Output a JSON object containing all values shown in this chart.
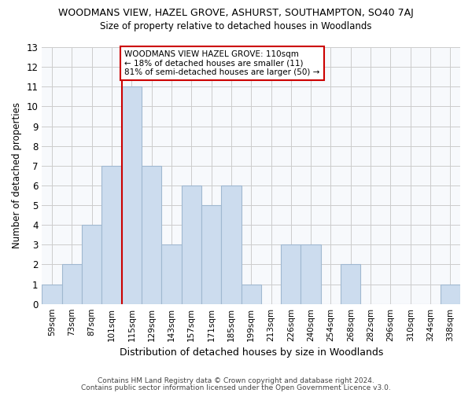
{
  "title": "WOODMANS VIEW, HAZEL GROVE, ASHURST, SOUTHAMPTON, SO40 7AJ",
  "subtitle": "Size of property relative to detached houses in Woodlands",
  "xlabel": "Distribution of detached houses by size in Woodlands",
  "ylabel": "Number of detached properties",
  "bar_color": "#ccdcee",
  "bar_edge_color": "#a0b8d0",
  "grid_color": "#cccccc",
  "annotation_line_color": "#cc0000",
  "categories": [
    "59sqm",
    "73sqm",
    "87sqm",
    "101sqm",
    "115sqm",
    "129sqm",
    "143sqm",
    "157sqm",
    "171sqm",
    "185sqm",
    "199sqm",
    "213sqm",
    "226sqm",
    "240sqm",
    "254sqm",
    "268sqm",
    "282sqm",
    "296sqm",
    "310sqm",
    "324sqm",
    "338sqm"
  ],
  "values": [
    1,
    2,
    4,
    7,
    11,
    7,
    3,
    6,
    5,
    6,
    1,
    0,
    3,
    3,
    0,
    2,
    0,
    0,
    0,
    0,
    1
  ],
  "ylim": [
    0,
    13
  ],
  "yticks": [
    0,
    1,
    2,
    3,
    4,
    5,
    6,
    7,
    8,
    9,
    10,
    11,
    12,
    13
  ],
  "annotation_box_text": "WOODMANS VIEW HAZEL GROVE: 110sqm\n← 18% of detached houses are smaller (11)\n81% of semi-detached houses are larger (50) →",
  "footer_line1": "Contains HM Land Registry data © Crown copyright and database right 2024.",
  "footer_line2": "Contains public sector information licensed under the Open Government Licence v3.0.",
  "background_color": "#ffffff",
  "plot_bg_color": "#f7f9fc"
}
